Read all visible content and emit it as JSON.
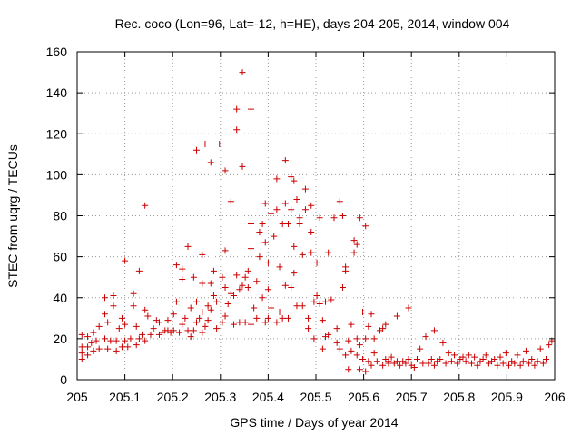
{
  "chart_data": {
    "type": "scatter",
    "title": "Rec. coco (Lon=96, Lat=-12, h=HE), days 204-205, 2014, window 004",
    "xlabel": "GPS time / Days of year 2014",
    "ylabel": "STEC from uqrg / TECUs",
    "xlim": [
      205,
      206
    ],
    "ylim": [
      0,
      160
    ],
    "x_ticks": [
      205,
      205.1,
      205.2,
      205.3,
      205.4,
      205.5,
      205.6,
      205.7,
      205.8,
      205.9,
      206
    ],
    "x_tick_labels": [
      "205",
      "205.1",
      "205.2",
      "205.3",
      "205.4",
      "205.5",
      "205.6",
      "205.7",
      "205.8",
      "205.9",
      "206"
    ],
    "y_ticks": [
      0,
      20,
      40,
      60,
      80,
      100,
      120,
      140,
      160
    ],
    "y_tick_labels": [
      "0",
      "20",
      "40",
      "60",
      "80",
      "100",
      "120",
      "140",
      "160"
    ],
    "grid": true,
    "marker": "+",
    "marker_color": "#cc0000",
    "points": [
      [
        205.01,
        10
      ],
      [
        205.01,
        13
      ],
      [
        205.01,
        16
      ],
      [
        205.01,
        22
      ],
      [
        205.022,
        12
      ],
      [
        205.022,
        16
      ],
      [
        205.022,
        21
      ],
      [
        205.03,
        18
      ],
      [
        205.034,
        14
      ],
      [
        205.034,
        23
      ],
      [
        205.04,
        19
      ],
      [
        205.046,
        15
      ],
      [
        205.046,
        26
      ],
      [
        205.058,
        20
      ],
      [
        205.058,
        32
      ],
      [
        205.058,
        40
      ],
      [
        205.064,
        15
      ],
      [
        205.064,
        28
      ],
      [
        205.07,
        19
      ],
      [
        205.076,
        36
      ],
      [
        205.076,
        41
      ],
      [
        205.082,
        14
      ],
      [
        205.082,
        19
      ],
      [
        205.088,
        25
      ],
      [
        205.094,
        16
      ],
      [
        205.094,
        30
      ],
      [
        205.1,
        19
      ],
      [
        205.1,
        27
      ],
      [
        205.1,
        58
      ],
      [
        205.106,
        16
      ],
      [
        205.112,
        20
      ],
      [
        205.118,
        36
      ],
      [
        205.118,
        42
      ],
      [
        205.124,
        17
      ],
      [
        205.124,
        26
      ],
      [
        205.13,
        20
      ],
      [
        205.13,
        53
      ],
      [
        205.136,
        22
      ],
      [
        205.142,
        19
      ],
      [
        205.142,
        34
      ],
      [
        205.142,
        85
      ],
      [
        205.148,
        31
      ],
      [
        205.154,
        22
      ],
      [
        205.16,
        25
      ],
      [
        205.166,
        29
      ],
      [
        205.172,
        22
      ],
      [
        205.172,
        28
      ],
      [
        205.178,
        23
      ],
      [
        205.184,
        24
      ],
      [
        205.19,
        24
      ],
      [
        205.19,
        29
      ],
      [
        205.196,
        23
      ],
      [
        205.202,
        24
      ],
      [
        205.202,
        32
      ],
      [
        205.208,
        38
      ],
      [
        205.208,
        56
      ],
      [
        205.214,
        23
      ],
      [
        205.22,
        27
      ],
      [
        205.22,
        49
      ],
      [
        205.22,
        54
      ],
      [
        205.226,
        30
      ],
      [
        205.232,
        24
      ],
      [
        205.232,
        65
      ],
      [
        205.238,
        21
      ],
      [
        205.238,
        35
      ],
      [
        205.244,
        24
      ],
      [
        205.244,
        50
      ],
      [
        205.25,
        28
      ],
      [
        205.25,
        38
      ],
      [
        205.25,
        112
      ],
      [
        205.256,
        30
      ],
      [
        205.262,
        23
      ],
      [
        205.262,
        33
      ],
      [
        205.262,
        47
      ],
      [
        205.262,
        61
      ],
      [
        205.268,
        26
      ],
      [
        205.268,
        115
      ],
      [
        205.274,
        29
      ],
      [
        205.274,
        36
      ],
      [
        205.28,
        34
      ],
      [
        205.28,
        47
      ],
      [
        205.28,
        106
      ],
      [
        205.286,
        41
      ],
      [
        205.286,
        53
      ],
      [
        205.292,
        25
      ],
      [
        205.292,
        38
      ],
      [
        205.298,
        115
      ],
      [
        205.304,
        28
      ],
      [
        205.304,
        50
      ],
      [
        205.31,
        31
      ],
      [
        205.31,
        45
      ],
      [
        205.31,
        63
      ],
      [
        205.31,
        102
      ],
      [
        205.316,
        37
      ],
      [
        205.322,
        42
      ],
      [
        205.322,
        87
      ],
      [
        205.328,
        27
      ],
      [
        205.328,
        41
      ],
      [
        205.334,
        51
      ],
      [
        205.334,
        122
      ],
      [
        205.334,
        132
      ],
      [
        205.34,
        28
      ],
      [
        205.34,
        44
      ],
      [
        205.346,
        46
      ],
      [
        205.346,
        104
      ],
      [
        205.346,
        150
      ],
      [
        205.352,
        28
      ],
      [
        205.352,
        50
      ],
      [
        205.358,
        45
      ],
      [
        205.358,
        53
      ],
      [
        205.364,
        27
      ],
      [
        205.364,
        64
      ],
      [
        205.364,
        76
      ],
      [
        205.364,
        132
      ],
      [
        205.37,
        35
      ],
      [
        205.376,
        30
      ],
      [
        205.376,
        48
      ],
      [
        205.382,
        60
      ],
      [
        205.382,
        72
      ],
      [
        205.388,
        40
      ],
      [
        205.388,
        76
      ],
      [
        205.394,
        28
      ],
      [
        205.394,
        86
      ],
      [
        205.394,
        67
      ],
      [
        205.4,
        30
      ],
      [
        205.4,
        44
      ],
      [
        205.4,
        57
      ],
      [
        205.406,
        35
      ],
      [
        205.406,
        81
      ],
      [
        205.412,
        70
      ],
      [
        205.418,
        28
      ],
      [
        205.418,
        98
      ],
      [
        205.418,
        83
      ],
      [
        205.424,
        33
      ],
      [
        205.424,
        55
      ],
      [
        205.43,
        30
      ],
      [
        205.43,
        76
      ],
      [
        205.436,
        86
      ],
      [
        205.436,
        107
      ],
      [
        205.436,
        46
      ],
      [
        205.442,
        30
      ],
      [
        205.442,
        76
      ],
      [
        205.448,
        45
      ],
      [
        205.448,
        99
      ],
      [
        205.448,
        83
      ],
      [
        205.454,
        65
      ],
      [
        205.454,
        97
      ],
      [
        205.454,
        52
      ],
      [
        205.46,
        36
      ],
      [
        205.46,
        88
      ],
      [
        205.466,
        76
      ],
      [
        205.466,
        79
      ],
      [
        205.472,
        61
      ],
      [
        205.472,
        36
      ],
      [
        205.478,
        83
      ],
      [
        205.478,
        93
      ],
      [
        205.484,
        30
      ],
      [
        205.484,
        25
      ],
      [
        205.49,
        72
      ],
      [
        205.49,
        85
      ],
      [
        205.49,
        62
      ],
      [
        205.496,
        20
      ],
      [
        205.496,
        38
      ],
      [
        205.502,
        41
      ],
      [
        205.502,
        57
      ],
      [
        205.508,
        37
      ],
      [
        205.508,
        79
      ],
      [
        205.514,
        15
      ],
      [
        205.514,
        29
      ],
      [
        205.52,
        38
      ],
      [
        205.52,
        21
      ],
      [
        205.526,
        22
      ],
      [
        205.526,
        62
      ],
      [
        205.532,
        39
      ],
      [
        205.538,
        79
      ],
      [
        205.544,
        18
      ],
      [
        205.544,
        25
      ],
      [
        205.55,
        15
      ],
      [
        205.55,
        87
      ],
      [
        205.556,
        45
      ],
      [
        205.556,
        80
      ],
      [
        205.562,
        12
      ],
      [
        205.562,
        53
      ],
      [
        205.562,
        55
      ],
      [
        205.568,
        5
      ],
      [
        205.568,
        19
      ],
      [
        205.574,
        14
      ],
      [
        205.574,
        27
      ],
      [
        205.58,
        62
      ],
      [
        205.58,
        68
      ],
      [
        205.586,
        12
      ],
      [
        205.586,
        20
      ],
      [
        205.586,
        66
      ],
      [
        205.592,
        5
      ],
      [
        205.592,
        17
      ],
      [
        205.592,
        79
      ],
      [
        205.598,
        10
      ],
      [
        205.598,
        33
      ],
      [
        205.604,
        4
      ],
      [
        205.604,
        20
      ],
      [
        205.604,
        75
      ],
      [
        205.61,
        9
      ],
      [
        205.61,
        26
      ],
      [
        205.616,
        7
      ],
      [
        205.616,
        32
      ],
      [
        205.622,
        13
      ],
      [
        205.622,
        20
      ],
      [
        205.628,
        9
      ],
      [
        205.634,
        24
      ],
      [
        205.64,
        7
      ],
      [
        205.64,
        25
      ],
      [
        205.646,
        10
      ],
      [
        205.646,
        27
      ],
      [
        205.652,
        8
      ],
      [
        205.652,
        9
      ],
      [
        205.658,
        11
      ],
      [
        205.664,
        8
      ],
      [
        205.67,
        9
      ],
      [
        205.67,
        31
      ],
      [
        205.676,
        7
      ],
      [
        205.682,
        9
      ],
      [
        205.688,
        8
      ],
      [
        205.694,
        10
      ],
      [
        205.694,
        35
      ],
      [
        205.7,
        7
      ],
      [
        205.706,
        6
      ],
      [
        205.712,
        10
      ],
      [
        205.718,
        15
      ],
      [
        205.724,
        8
      ],
      [
        205.73,
        21
      ],
      [
        205.736,
        8
      ],
      [
        205.742,
        10
      ],
      [
        205.748,
        7
      ],
      [
        205.748,
        24
      ],
      [
        205.754,
        9
      ],
      [
        205.76,
        10
      ],
      [
        205.766,
        18
      ],
      [
        205.772,
        8
      ],
      [
        205.778,
        13
      ],
      [
        205.784,
        9
      ],
      [
        205.79,
        12
      ],
      [
        205.796,
        8
      ],
      [
        205.802,
        10
      ],
      [
        205.808,
        11
      ],
      [
        205.814,
        9
      ],
      [
        205.82,
        12
      ],
      [
        205.826,
        8
      ],
      [
        205.832,
        11
      ],
      [
        205.838,
        7
      ],
      [
        205.844,
        9
      ],
      [
        205.85,
        10
      ],
      [
        205.856,
        12
      ],
      [
        205.862,
        8
      ],
      [
        205.868,
        9
      ],
      [
        205.874,
        10
      ],
      [
        205.88,
        7
      ],
      [
        205.886,
        11
      ],
      [
        205.892,
        8
      ],
      [
        205.898,
        13
      ],
      [
        205.904,
        7
      ],
      [
        205.91,
        9
      ],
      [
        205.916,
        8
      ],
      [
        205.922,
        12
      ],
      [
        205.928,
        7
      ],
      [
        205.934,
        9
      ],
      [
        205.94,
        14
      ],
      [
        205.946,
        8
      ],
      [
        205.952,
        10
      ],
      [
        205.958,
        7
      ],
      [
        205.964,
        9
      ],
      [
        205.97,
        15
      ],
      [
        205.976,
        8
      ],
      [
        205.982,
        10
      ],
      [
        205.988,
        17
      ],
      [
        205.994,
        19
      ]
    ]
  }
}
